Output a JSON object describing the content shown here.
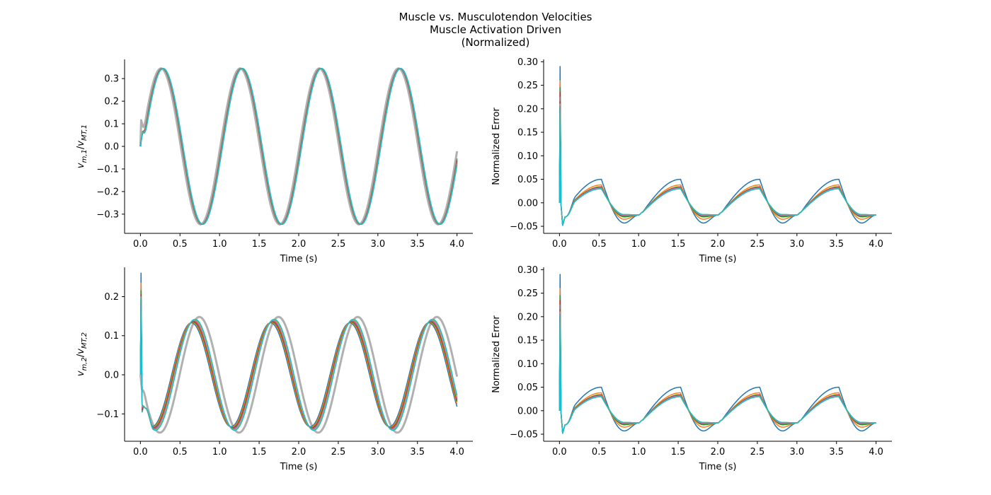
{
  "suptitle": [
    "Muscle vs. Musculotendon Velocities",
    "Muscle Activation Driven",
    "(Normalized)"
  ],
  "colors": [
    "#1f77b4",
    "#ff7f0e",
    "#2ca02c",
    "#d62728",
    "#9467bd",
    "#8c564b",
    "#e377c2",
    "#7f7f7f",
    "#bcbd22",
    "#17becf"
  ],
  "chart_data": [
    {
      "type": "line",
      "panel": "top-left",
      "xlabel": "Time (s)",
      "ylabel_parts": {
        "v": "v",
        "num_sub": "m,1",
        "slash": "/",
        "den_sub": "MT,1"
      },
      "xlim": [
        -0.2,
        4.2
      ],
      "ylim": [
        -0.385,
        0.385
      ],
      "xticks": [
        0.0,
        0.5,
        1.0,
        1.5,
        2.0,
        2.5,
        3.0,
        3.5,
        4.0
      ],
      "yticks": [
        -0.3,
        -0.2,
        -0.1,
        0.0,
        0.1,
        0.2,
        0.3
      ],
      "tick_labels_x": [
        "0.0",
        "0.5",
        "1.0",
        "1.5",
        "2.0",
        "2.5",
        "3.0",
        "3.5",
        "4.0"
      ],
      "tick_labels_y": [
        "−0.3",
        "−0.2",
        "−0.1",
        "0.0",
        "0.1",
        "0.2",
        "0.3"
      ],
      "reference": {
        "color": "#b0b0b0",
        "amplitude": 0.345,
        "period": 1.0,
        "x_peak": 0.26,
        "x": [
          0.0,
          0.01,
          0.025,
          0.04,
          0.06
        ],
        "y": [
          0.0,
          0.12,
          0.11,
          0.1,
          0.11
        ]
      },
      "series_model": {
        "amplitude": 0.345,
        "period": 1.0,
        "x_peak": 0.275,
        "x": [
          0.0,
          0.03,
          0.07,
          0.11
        ],
        "y": [
          0.0,
          0.08,
          0.09,
          0.12
        ],
        "count": 10
      }
    },
    {
      "type": "line",
      "panel": "top-right",
      "xlabel": "Time (s)",
      "ylabel": "Normalized Error",
      "xlim": [
        -0.2,
        4.2
      ],
      "ylim": [
        -0.065,
        0.305
      ],
      "xticks": [
        0.0,
        0.5,
        1.0,
        1.5,
        2.0,
        2.5,
        3.0,
        3.5,
        4.0
      ],
      "yticks": [
        -0.05,
        0.0,
        0.05,
        0.1,
        0.15,
        0.2,
        0.25,
        0.3
      ],
      "tick_labels_x": [
        "0.0",
        "0.5",
        "1.0",
        "1.5",
        "2.0",
        "2.5",
        "3.0",
        "3.5",
        "4.0"
      ],
      "tick_labels_y": [
        "−0.05",
        "0.00",
        "0.05",
        "0.10",
        "0.15",
        "0.20",
        "0.25",
        "0.30"
      ],
      "series_model": {
        "spike_peaks": [
          0.29,
          0.26,
          0.245,
          0.235,
          0.225,
          0.215,
          0.21,
          0.205,
          0.2,
          0.205
        ],
        "cycle_peaks": [
          0.05,
          0.038,
          0.034,
          0.033,
          0.032,
          0.031,
          0.031,
          0.03,
          0.03,
          0.03
        ],
        "cycle_troughs": [
          -0.043,
          -0.035,
          -0.03,
          -0.028,
          -0.027,
          -0.026,
          -0.026,
          -0.025,
          -0.025,
          -0.025
        ],
        "period": 1.0
      }
    },
    {
      "type": "line",
      "panel": "bottom-left",
      "xlabel": "Time (s)",
      "ylabel_parts": {
        "v": "v",
        "num_sub": "m,2",
        "slash": "/",
        "den_sub": "MT,2"
      },
      "xlim": [
        -0.2,
        4.2
      ],
      "ylim": [
        -0.17,
        0.275
      ],
      "xticks": [
        0.0,
        0.5,
        1.0,
        1.5,
        2.0,
        2.5,
        3.0,
        3.5,
        4.0
      ],
      "yticks": [
        -0.1,
        0.0,
        0.1,
        0.2
      ],
      "tick_labels_x": [
        "0.0",
        "0.5",
        "1.0",
        "1.5",
        "2.0",
        "2.5",
        "3.0",
        "3.5",
        "4.0"
      ],
      "tick_labels_y": [
        "−0.1",
        "0.0",
        "0.1",
        "0.2"
      ],
      "reference": {
        "color": "#b0b0b0",
        "amplitude": 0.148,
        "period": 1.0,
        "x_peak": 0.745,
        "x": [
          0.0,
          0.02,
          0.05,
          0.08
        ],
        "y": [
          0.0,
          -0.04,
          -0.045,
          -0.06
        ]
      },
      "series_model": {
        "amplitude": 0.133,
        "period": 1.0,
        "peak_shift": [
          0.645,
          0.655,
          0.665,
          0.67,
          0.675,
          0.68,
          0.68,
          0.685,
          0.685,
          0.69
        ],
        "spike_peaks": [
          0.26,
          0.235,
          0.215,
          0.205,
          0.195,
          0.19,
          0.185,
          0.18,
          0.175,
          0.2
        ],
        "dip": -0.095
      }
    },
    {
      "type": "line",
      "panel": "bottom-right",
      "xlabel": "Time (s)",
      "ylabel": "Normalized Error",
      "xlim": [
        -0.2,
        4.2
      ],
      "ylim": [
        -0.065,
        0.305
      ],
      "xticks": [
        0.0,
        0.5,
        1.0,
        1.5,
        2.0,
        2.5,
        3.0,
        3.5,
        4.0
      ],
      "yticks": [
        -0.05,
        0.0,
        0.05,
        0.1,
        0.15,
        0.2,
        0.25,
        0.3
      ],
      "tick_labels_x": [
        "0.0",
        "0.5",
        "1.0",
        "1.5",
        "2.0",
        "2.5",
        "3.0",
        "3.5",
        "4.0"
      ],
      "tick_labels_y": [
        "−0.05",
        "0.00",
        "0.05",
        "0.10",
        "0.15",
        "0.20",
        "0.25",
        "0.30"
      ],
      "series_model": {
        "spike_peaks": [
          0.29,
          0.26,
          0.245,
          0.235,
          0.225,
          0.215,
          0.21,
          0.205,
          0.2,
          0.205
        ],
        "cycle_peaks": [
          0.05,
          0.038,
          0.034,
          0.033,
          0.032,
          0.031,
          0.031,
          0.03,
          0.03,
          0.03
        ],
        "cycle_troughs": [
          -0.043,
          -0.035,
          -0.03,
          -0.028,
          -0.027,
          -0.026,
          -0.026,
          -0.025,
          -0.025,
          -0.025
        ],
        "period": 1.0
      }
    }
  ]
}
